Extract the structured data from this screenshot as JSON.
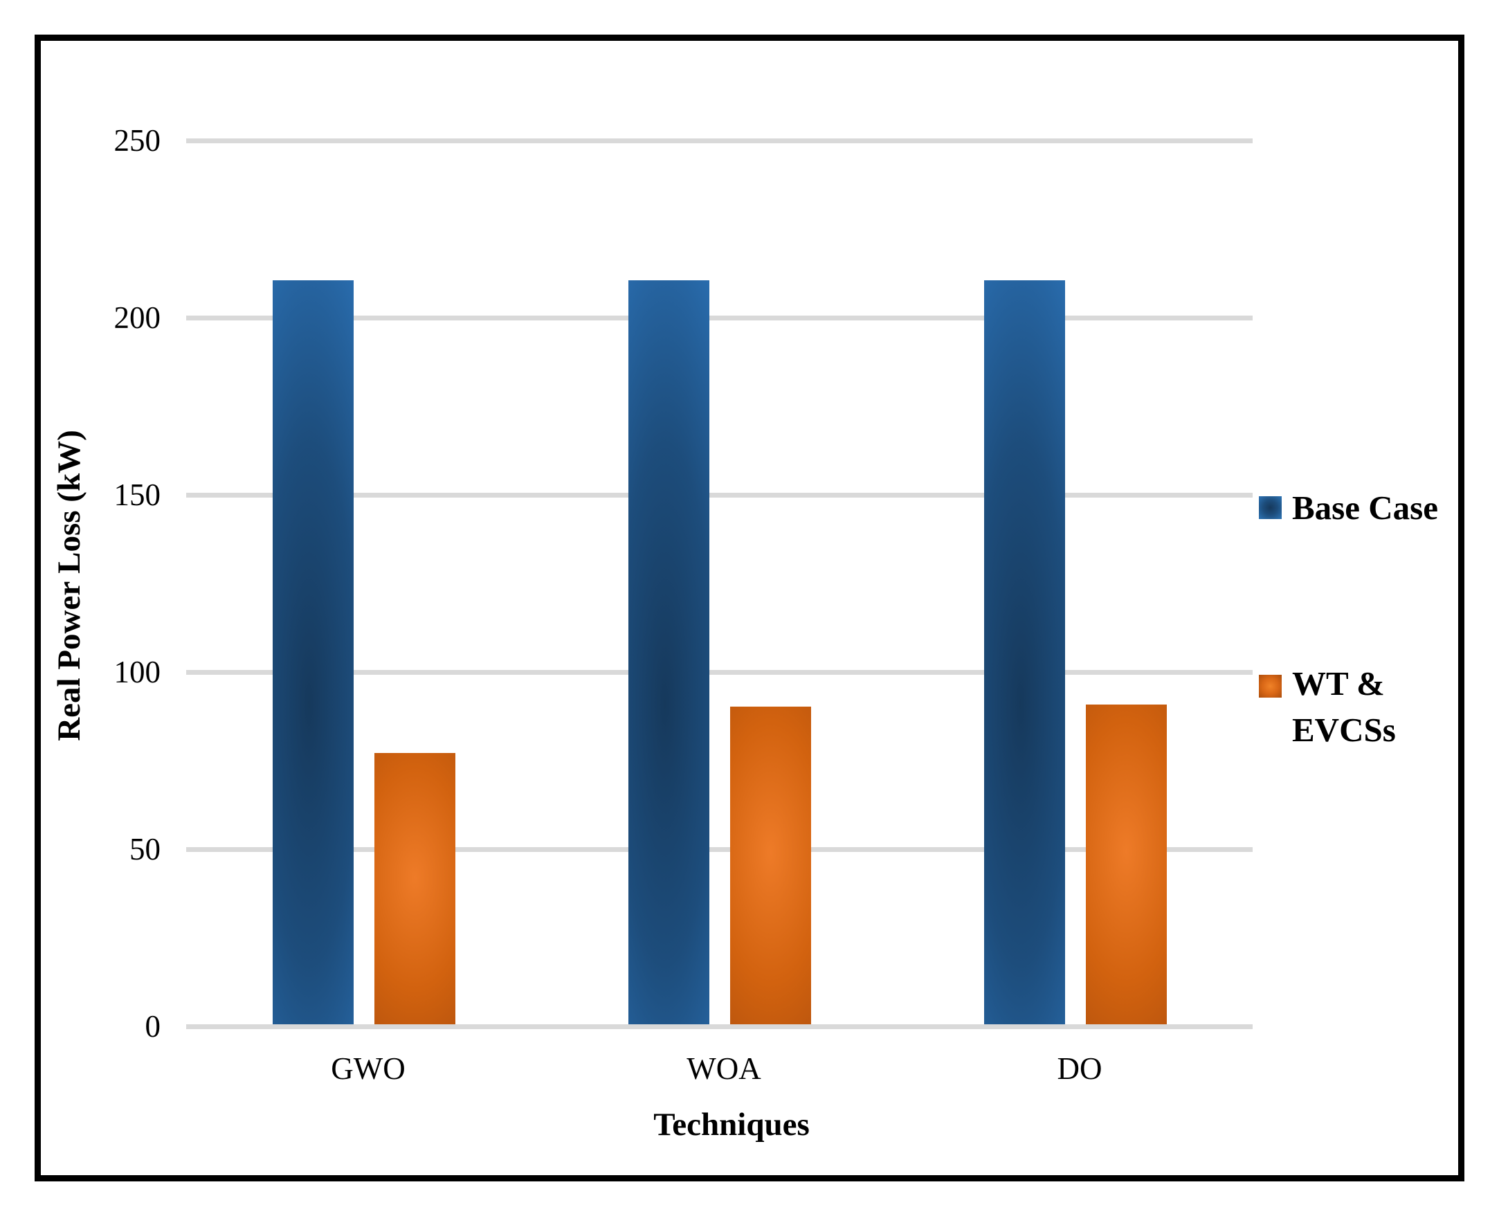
{
  "chart_data": {
    "type": "bar",
    "title": "",
    "categories": [
      "GWO",
      "WOA",
      "DO"
    ],
    "series": [
      {
        "name": "Base Case",
        "color": "#2e75b6",
        "fill_center": "#16395c",
        "fill_edge": "#2e79c2",
        "values": [
          210,
          210,
          210
        ]
      },
      {
        "name": "WT & EVCSs",
        "color": "#c55a11",
        "fill_center": "#ee7b28",
        "fill_edge": "#ab4d0c",
        "values": [
          76.6,
          89.7,
          90.2
        ]
      }
    ],
    "xlabel": "Techniques",
    "ylabel": "Real Power Loss (kW)",
    "ylim": [
      0,
      250
    ],
    "yticks": [
      0,
      50,
      100,
      150,
      200,
      250
    ],
    "grid": "horizontal",
    "gridline_color": "#d9d9d9",
    "legend_position": "right",
    "legend": [
      "Base Case",
      "WT & EVCSs"
    ]
  }
}
